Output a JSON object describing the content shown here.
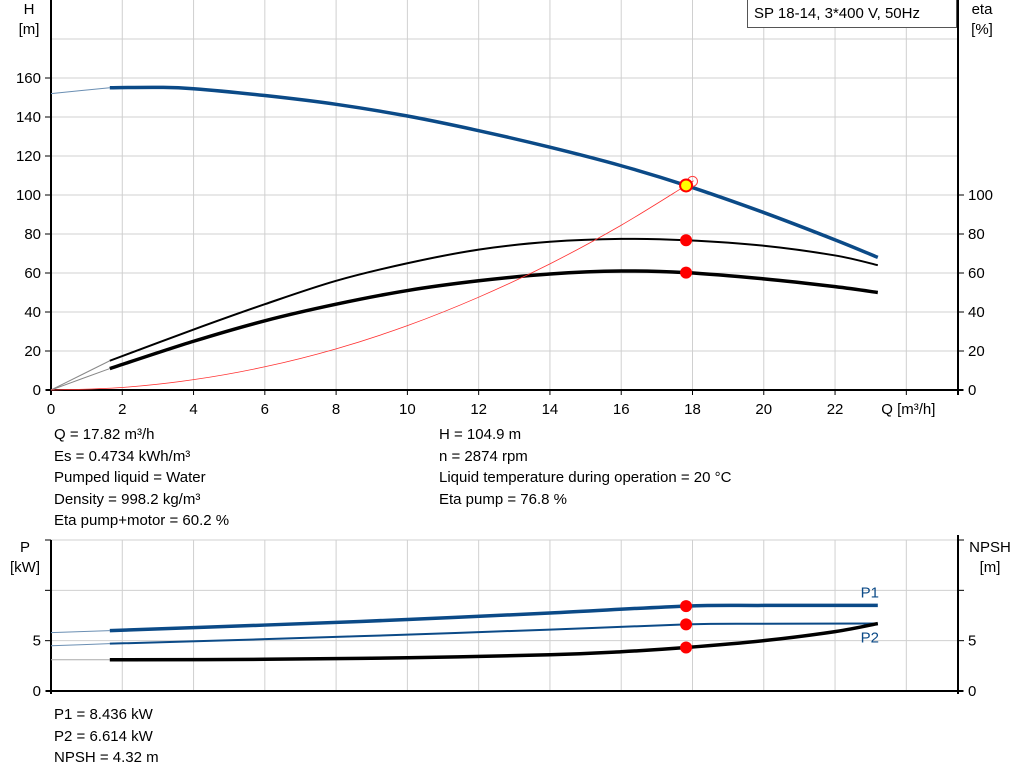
{
  "chart_data": [
    {
      "type": "line",
      "title": "SP 18-14, 3*400 V, 50Hz",
      "xlabel": "Q [m³/h]",
      "ylabel": "H\n[m]",
      "ylabel_top": "H",
      "ylabel_unit": "[m]",
      "y2label_top": "eta",
      "y2label_unit": "[%]",
      "xlim": [
        0,
        25.45
      ],
      "ylim": [
        0,
        200
      ],
      "y2lim": [
        0,
        200
      ],
      "xticks": [
        "0",
        "2",
        "4",
        "6",
        "8",
        "10",
        "12",
        "14",
        "16",
        "18",
        "20",
        "22"
      ],
      "yticks": [
        "0",
        "20",
        "40",
        "60",
        "80",
        "100",
        "120",
        "140",
        "160"
      ],
      "y2ticks": [
        "0",
        "20",
        "40",
        "60",
        "80",
        "100"
      ],
      "grid": true,
      "series": [
        {
          "key": "H",
          "color": "#0b4a87",
          "axis": "left",
          "extrapolated": [
            [
              0,
              152
            ],
            [
              1.65,
              155
            ]
          ],
          "x": [
            1.65,
            3,
            4,
            6,
            8,
            10,
            12,
            14,
            16,
            17.82,
            20,
            22,
            23.2
          ],
          "y": [
            155,
            155.2,
            154.5,
            151,
            146.5,
            140.5,
            133,
            124.5,
            115,
            104.9,
            91,
            77,
            68
          ]
        },
        {
          "key": "eta_pump",
          "color": "#000000",
          "axis": "right",
          "extrapolated": [
            [
              0,
              0
            ],
            [
              1.65,
              15
            ]
          ],
          "x": [
            1.65,
            4,
            6,
            8,
            10,
            12,
            14,
            16,
            17.82,
            20,
            22,
            23.2
          ],
          "y": [
            15,
            31,
            44,
            56,
            65,
            72,
            76,
            77.5,
            76.8,
            74,
            69,
            64
          ]
        },
        {
          "key": "eta_pump_motor",
          "color": "#000000",
          "axis": "right",
          "extrapolated": [
            [
              0,
              0
            ],
            [
              1.65,
              11
            ]
          ],
          "x": [
            1.65,
            4,
            6,
            8,
            10,
            12,
            14,
            16,
            17.82,
            20,
            22,
            23.2
          ],
          "y": [
            11,
            25,
            35.5,
            44,
            51,
            56,
            59.5,
            61,
            60.2,
            57,
            53,
            50
          ]
        },
        {
          "key": "system_curve",
          "color": "#ff3030",
          "axis": "left",
          "x": [
            0,
            2,
            4,
            6,
            8,
            10,
            12,
            14,
            16,
            17.82,
            18
          ],
          "y": [
            0,
            1.3,
            5.3,
            11.9,
            21.1,
            33,
            47.6,
            64.7,
            84.5,
            104.9,
            107
          ]
        }
      ],
      "duty_points": [
        {
          "key": "H",
          "x": 17.82,
          "y": 104.9,
          "color": "#ffff00"
        },
        {
          "key": "eta_pump",
          "x": 17.82,
          "y": 76.8,
          "color": "#ff0000"
        },
        {
          "key": "eta_pump_motor",
          "x": 17.82,
          "y": 60.2,
          "color": "#ff0000"
        }
      ]
    },
    {
      "type": "line",
      "xlim": [
        0,
        25.45
      ],
      "ylim": [
        0,
        15
      ],
      "y2lim": [
        0,
        15
      ],
      "ylabel_top": "P",
      "ylabel_unit": "[kW]",
      "y2label_top": "NPSH",
      "y2label_unit": "[m]",
      "yticks": [
        "0",
        "5"
      ],
      "y2ticks": [
        "0",
        "5"
      ],
      "grid": true,
      "series": [
        {
          "name": "P1",
          "color": "#0b4a87",
          "width": 3.5,
          "extrapolated": [
            [
              0,
              5.8
            ],
            [
              1.65,
              6.0
            ]
          ],
          "x": [
            1.65,
            6,
            10,
            14,
            17.82,
            20,
            23.2
          ],
          "y": [
            6.0,
            6.55,
            7.1,
            7.75,
            8.436,
            8.5,
            8.5
          ]
        },
        {
          "name": "P2",
          "color": "#0b4a87",
          "width": 2,
          "extrapolated": [
            [
              0,
              4.5
            ],
            [
              1.65,
              4.7
            ]
          ],
          "x": [
            1.65,
            6,
            10,
            14,
            17.82,
            20,
            23.2
          ],
          "y": [
            4.7,
            5.15,
            5.6,
            6.1,
            6.614,
            6.68,
            6.7
          ]
        },
        {
          "key": "NPSH",
          "color": "#000000",
          "width": 3.5,
          "extrapolated": [
            [
              0,
              3.1
            ],
            [
              1.65,
              3.1
            ]
          ],
          "x": [
            1.65,
            6,
            10,
            14,
            16,
            17.82,
            20,
            22,
            23.2
          ],
          "y": [
            3.1,
            3.15,
            3.3,
            3.6,
            3.9,
            4.32,
            5.0,
            5.9,
            6.7
          ]
        }
      ],
      "duty_points": [
        {
          "x": 17.82,
          "y": 8.436
        },
        {
          "x": 17.82,
          "y": 6.614
        },
        {
          "x": 17.82,
          "y": 4.32
        }
      ]
    }
  ],
  "info_left": [
    "Q = 17.82 m³/h",
    "Es = 0.4734 kWh/m³",
    "Pumped liquid = Water",
    "Density = 998.2 kg/m³",
    "Eta pump+motor = 60.2 %"
  ],
  "info_right": [
    "H = 104.9 m",
    "n = 2874 rpm",
    "Liquid temperature during operation = 20 °C",
    "Eta pump = 76.8 %"
  ],
  "info_bottom": [
    "P1 = 8.436 kW",
    "P2 = 6.614 kW",
    "NPSH = 4.32 m"
  ]
}
